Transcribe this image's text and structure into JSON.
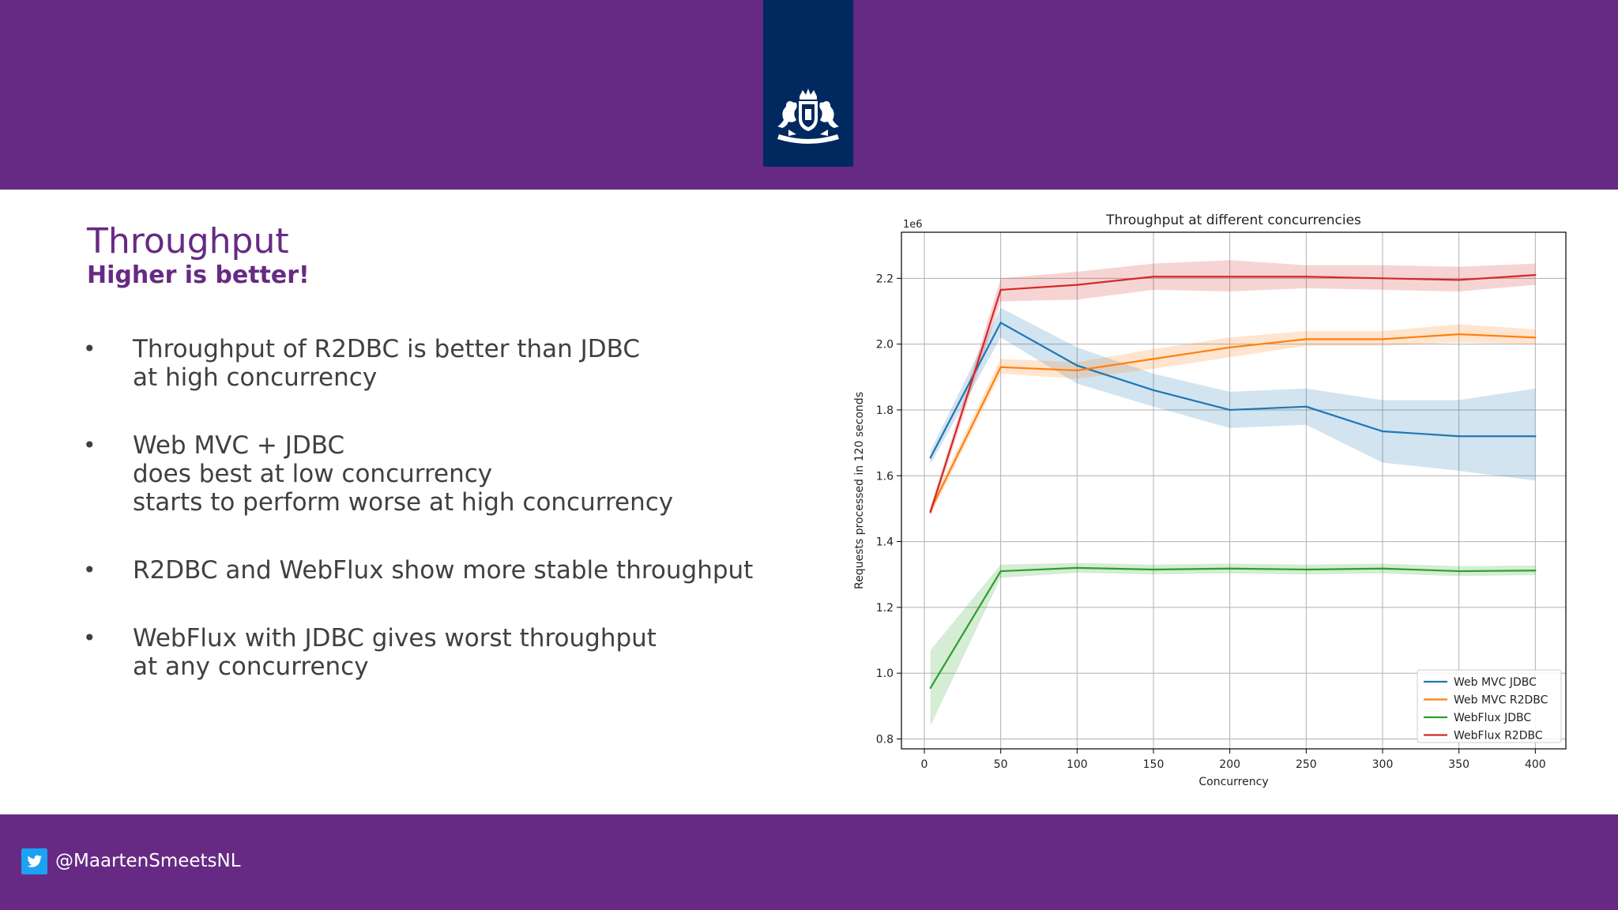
{
  "slide": {
    "title": "Throughput",
    "subtitle": "Higher is better!",
    "bullets": [
      {
        "lines": [
          "Throughput of R2DBC is better than JDBC",
          "at high concurrency"
        ]
      },
      {
        "lines": [
          "Web MVC + JDBC",
          "does best at low concurrency",
          "starts to perform worse at high concurrency"
        ]
      },
      {
        "lines": [
          "R2DBC and WebFlux show more stable throughput"
        ]
      },
      {
        "lines": [
          "WebFlux with JDBC gives worst throughput",
          "at any concurrency"
        ]
      }
    ],
    "bullet_symbol": "•"
  },
  "footer": {
    "handle": "@MaartenSmeetsNL",
    "icon": "twitter-icon"
  },
  "logo": {
    "icon": "coat-of-arms-icon"
  },
  "colors": {
    "band": "#662a84",
    "logo_block": "#01295f",
    "twitter_blue": "#1da1f2"
  },
  "chart_data": {
    "type": "line",
    "title": "Throughput at different concurrencies",
    "xlabel": "Concurrency",
    "ylabel": "Requests processed in 120 seconds",
    "y_offset_label": "1e6",
    "xlim": [
      -15,
      420
    ],
    "ylim": [
      0.77,
      2.34
    ],
    "xticks": [
      0,
      50,
      100,
      150,
      200,
      250,
      300,
      350,
      400
    ],
    "yticks": [
      0.8,
      1.0,
      1.2,
      1.4,
      1.6,
      1.8,
      2.0,
      2.2
    ],
    "ytick_labels": [
      "0.8",
      "1.0",
      "1.2",
      "1.4",
      "1.6",
      "1.8",
      "2.0",
      "2.2"
    ],
    "grid": true,
    "legend_position": "lower-right",
    "x": [
      4,
      50,
      100,
      150,
      200,
      250,
      300,
      350,
      400
    ],
    "series": [
      {
        "name": "Web MVC JDBC",
        "color": "#1f77b4",
        "values": [
          1.655,
          2.065,
          1.935,
          1.86,
          1.8,
          1.81,
          1.735,
          1.72,
          1.72
        ],
        "lower": [
          1.635,
          2.02,
          1.88,
          1.81,
          1.745,
          1.755,
          1.64,
          1.615,
          1.585
        ],
        "upper": [
          1.675,
          2.11,
          1.99,
          1.91,
          1.855,
          1.865,
          1.83,
          1.83,
          1.865
        ]
      },
      {
        "name": "Web MVC R2DBC",
        "color": "#ff7f0e",
        "values": [
          1.495,
          1.93,
          1.92,
          1.955,
          1.99,
          2.015,
          2.015,
          2.03,
          2.02
        ],
        "lower": [
          1.48,
          1.91,
          1.895,
          1.925,
          1.96,
          1.995,
          1.995,
          2.005,
          2.0
        ],
        "upper": [
          1.51,
          1.955,
          1.945,
          1.985,
          2.02,
          2.04,
          2.04,
          2.06,
          2.045
        ]
      },
      {
        "name": "WebFlux JDBC",
        "color": "#2ca02c",
        "values": [
          0.955,
          1.31,
          1.32,
          1.315,
          1.318,
          1.315,
          1.318,
          1.31,
          1.312
        ],
        "lower": [
          0.84,
          1.29,
          1.305,
          1.3,
          1.303,
          1.3,
          1.303,
          1.295,
          1.298
        ],
        "upper": [
          1.07,
          1.33,
          1.335,
          1.33,
          1.333,
          1.33,
          1.333,
          1.325,
          1.327
        ]
      },
      {
        "name": "WebFlux R2DBC",
        "color": "#d62728",
        "values": [
          1.49,
          2.165,
          2.18,
          2.205,
          2.205,
          2.205,
          2.2,
          2.195,
          2.21
        ],
        "lower": [
          1.475,
          2.13,
          2.135,
          2.165,
          2.16,
          2.17,
          2.165,
          2.16,
          2.18
        ],
        "upper": [
          1.505,
          2.2,
          2.22,
          2.245,
          2.255,
          2.24,
          2.24,
          2.235,
          2.245
        ]
      }
    ]
  }
}
